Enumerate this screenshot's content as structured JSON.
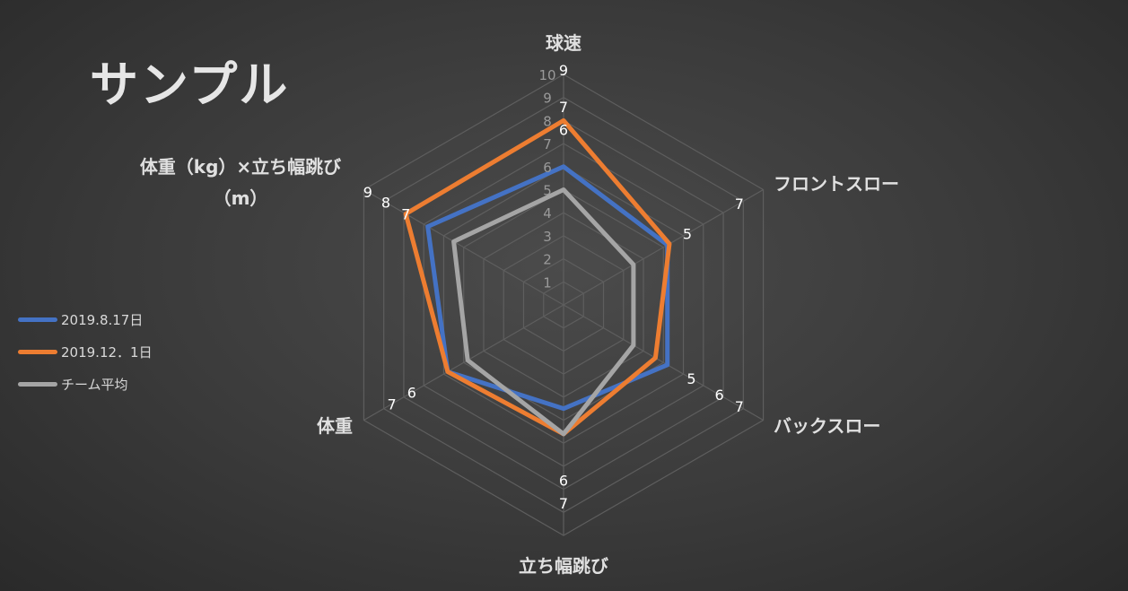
{
  "title": "サンプル",
  "chart_data": {
    "type": "radar",
    "axes": [
      "球速",
      "フロントスロー",
      "バックスロー",
      "立ち幅跳び",
      "体重",
      "体重（kg）×立ち幅跳び（m）"
    ],
    "axis_labels": [
      [
        "球速"
      ],
      [
        "フロントスロー"
      ],
      [
        "バックスロー"
      ],
      [
        "立ち幅跳び"
      ],
      [
        "体重"
      ],
      [
        "体重（kg）×立ち幅跳び",
        "（m）"
      ]
    ],
    "scale_ticks": [
      "1",
      "2",
      "3",
      "4",
      "5",
      "6",
      "7",
      "8",
      "9",
      "10"
    ],
    "rmax": 10,
    "series": [
      {
        "name": "2019.8.17日",
        "color": "#4472c4",
        "values": [
          6,
          5.2,
          5.2,
          4.5,
          5.8,
          6.8
        ]
      },
      {
        "name": "2019.12．1日",
        "color": "#ed7d31",
        "values": [
          8,
          5.3,
          4.6,
          5.6,
          5.8,
          7.9
        ]
      },
      {
        "name": "チーム平均",
        "color": "#a5a5a5",
        "values": [
          5,
          3.5,
          3.5,
          5.6,
          4.8,
          5.5
        ]
      }
    ],
    "axis_value_labels": [
      [
        "9",
        "7",
        "6"
      ],
      [
        "7",
        "5"
      ],
      [
        "7",
        "6",
        "5"
      ],
      [
        "7",
        "6"
      ],
      [
        "7",
        "6"
      ],
      [
        "9",
        "8",
        "7"
      ]
    ],
    "legend_position": "left",
    "grid": true
  }
}
